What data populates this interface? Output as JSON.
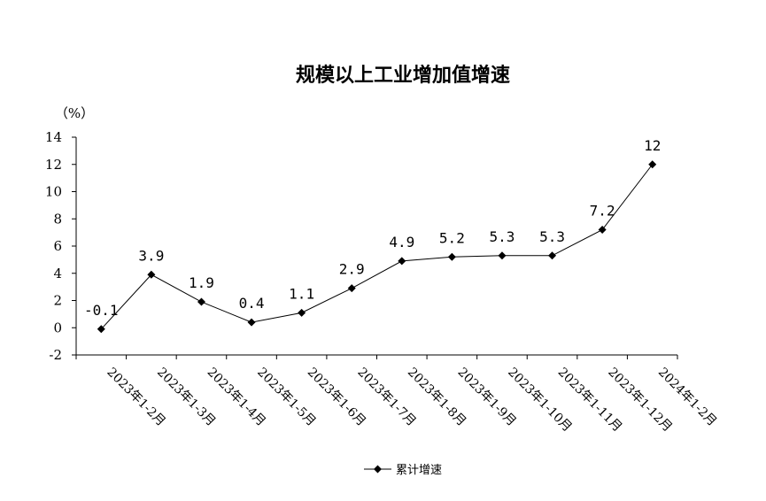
{
  "chart_data": {
    "type": "line",
    "title": "规模以上工业增加值增速",
    "ylabel": "（%）",
    "xlabel": "",
    "ylim": [
      -2,
      14
    ],
    "yticks": [
      -2,
      0,
      2,
      4,
      6,
      8,
      10,
      12,
      14
    ],
    "ytick_labels": [
      "-2",
      "0",
      "2",
      "4",
      "6",
      "8",
      "10",
      "12",
      "14"
    ],
    "grid": false,
    "legend_position": "bottom",
    "categories": [
      "2023年1-2月",
      "2023年1-3月",
      "2023年1-4月",
      "2023年1-5月",
      "2023年1-6月",
      "2023年1-7月",
      "2023年1-8月",
      "2023年1-9月",
      "2023年1-10月",
      "2023年1-11月",
      "2023年1-12月",
      "2024年1-2月"
    ],
    "series": [
      {
        "name": "累计增速",
        "values": [
          -0.1,
          3.9,
          1.9,
          0.4,
          1.1,
          2.9,
          4.9,
          5.2,
          5.3,
          5.3,
          7.2,
          12
        ],
        "labels": [
          "-0.1",
          "3.9",
          "1.9",
          "0.4",
          "1.1",
          "2.9",
          "4.9",
          "5.2",
          "5.3",
          "5.3",
          "7.2",
          "12"
        ],
        "color": "#000000",
        "marker": "diamond"
      }
    ]
  }
}
